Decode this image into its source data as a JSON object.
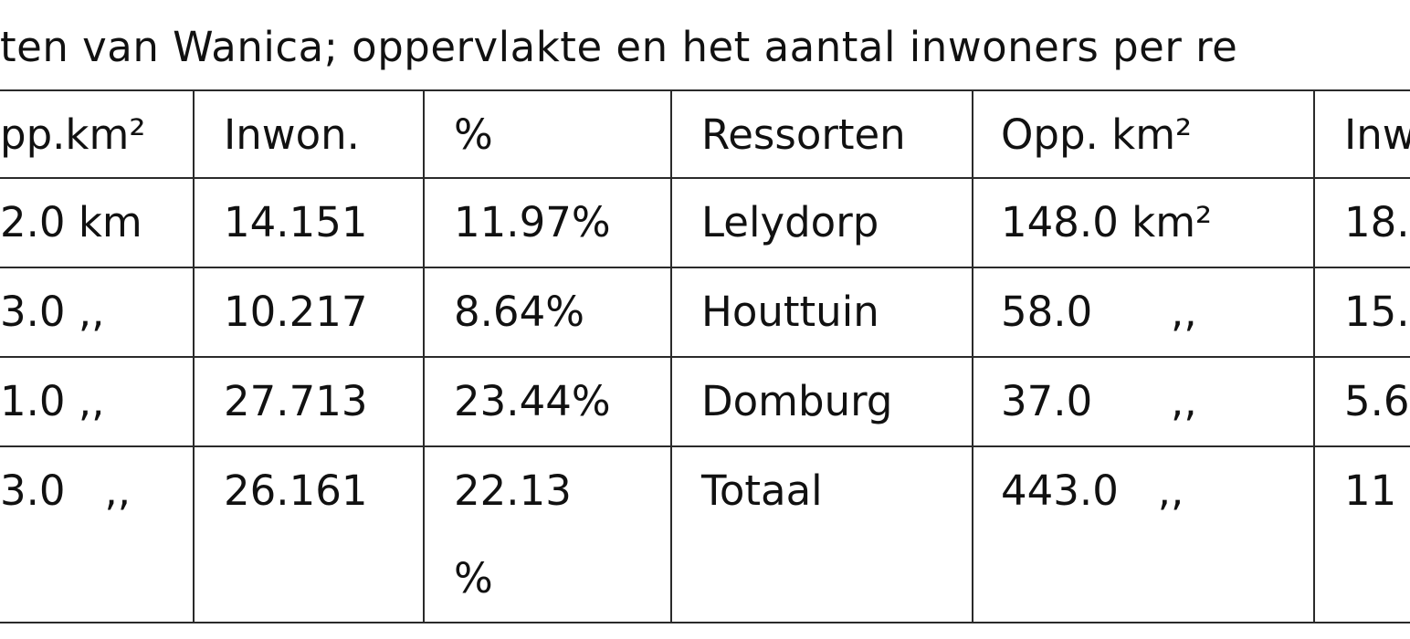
{
  "caption": "ten van Wanica; oppervlakte en het aantal inwoners per re",
  "table": {
    "header": [
      "pp.km²",
      "Inwon.",
      "%",
      "Ressorten",
      "Opp. km²",
      "Inw"
    ],
    "rows": [
      [
        "2.0 km",
        "14.151",
        "11.97%",
        "Lelydorp",
        "148.0 km²",
        "18."
      ],
      [
        "3.0  ,,",
        "10.217",
        "8.64%",
        "Houttuin",
        "58.0      ,,",
        "15."
      ],
      [
        "1.0  ,,",
        "27.713",
        "23.44%",
        "Domburg",
        "37.0      ,,",
        "5.6"
      ],
      [
        "3.0   ,,",
        "26.161",
        "22.13 %",
        "Totaal",
        "443.0   ,,",
        "11"
      ]
    ]
  }
}
